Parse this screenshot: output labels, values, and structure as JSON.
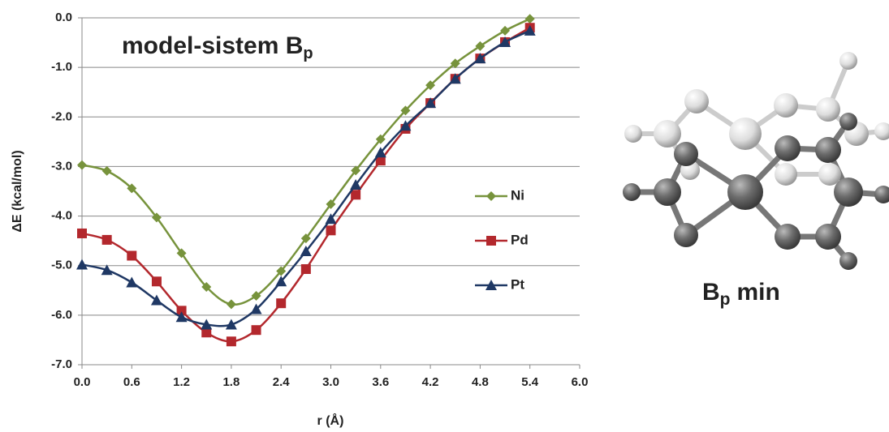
{
  "chart_data": {
    "type": "line",
    "title": "model-sistem B",
    "title_subscript": "p",
    "x_label": "r (Å)",
    "y_label": "ΔE (kcal/mol)",
    "x": [
      0,
      0.3,
      0.6,
      0.9,
      1.2,
      1.5,
      1.8,
      2.1,
      2.4,
      2.7,
      3.0,
      3.3,
      3.6,
      3.9,
      4.2,
      4.5,
      4.8,
      5.1,
      5.4
    ],
    "series": [
      {
        "name": "Ni",
        "color": "#77933c",
        "marker": "diamond",
        "values": [
          -2.97,
          -3.09,
          -3.44,
          -4.03,
          -4.75,
          -5.43,
          -5.78,
          -5.61,
          -5.11,
          -4.45,
          -3.76,
          -3.08,
          -2.45,
          -1.87,
          -1.36,
          -0.92,
          -0.57,
          -0.26,
          -0.02
        ]
      },
      {
        "name": "Pd",
        "color": "#b3282d",
        "marker": "square",
        "values": [
          -4.35,
          -4.48,
          -4.8,
          -5.32,
          -5.91,
          -6.35,
          -6.53,
          -6.3,
          -5.76,
          -5.07,
          -4.29,
          -3.57,
          -2.88,
          -2.24,
          -1.72,
          -1.23,
          -0.82,
          -0.49,
          -0.2
        ]
      },
      {
        "name": "Pt",
        "color": "#1f3864",
        "marker": "triangle",
        "values": [
          -4.98,
          -5.09,
          -5.34,
          -5.7,
          -6.04,
          -6.19,
          -6.19,
          -5.88,
          -5.32,
          -4.71,
          -4.06,
          -3.37,
          -2.72,
          -2.18,
          -1.72,
          -1.23,
          -0.82,
          -0.49,
          -0.26
        ]
      }
    ],
    "xlim": [
      0,
      6
    ],
    "xticks": [
      {
        "value": 0,
        "label": "0.0"
      },
      0.6,
      1.2,
      1.8,
      2.4,
      {
        "value": 3,
        "label": "3.0"
      },
      3.6,
      4.2,
      4.8,
      5.4,
      {
        "value": 6,
        "label": "6.0"
      }
    ],
    "ylim": [
      -7,
      0
    ],
    "yticks": [
      {
        "value": 0,
        "label": "0.0"
      },
      {
        "value": -1,
        "label": "-1.0"
      },
      {
        "value": -2,
        "label": "-2.0"
      },
      {
        "value": -3,
        "label": "-3.0"
      },
      {
        "value": -4,
        "label": "-4.0"
      },
      {
        "value": -5,
        "label": "-5.0"
      },
      {
        "value": -6,
        "label": "-6.0"
      },
      {
        "value": -7,
        "label": "-7.0"
      }
    ],
    "grid": true,
    "smooth": true,
    "legend": "right",
    "annotation": {
      "main": "B",
      "sub": "p",
      "rest": "min"
    }
  }
}
